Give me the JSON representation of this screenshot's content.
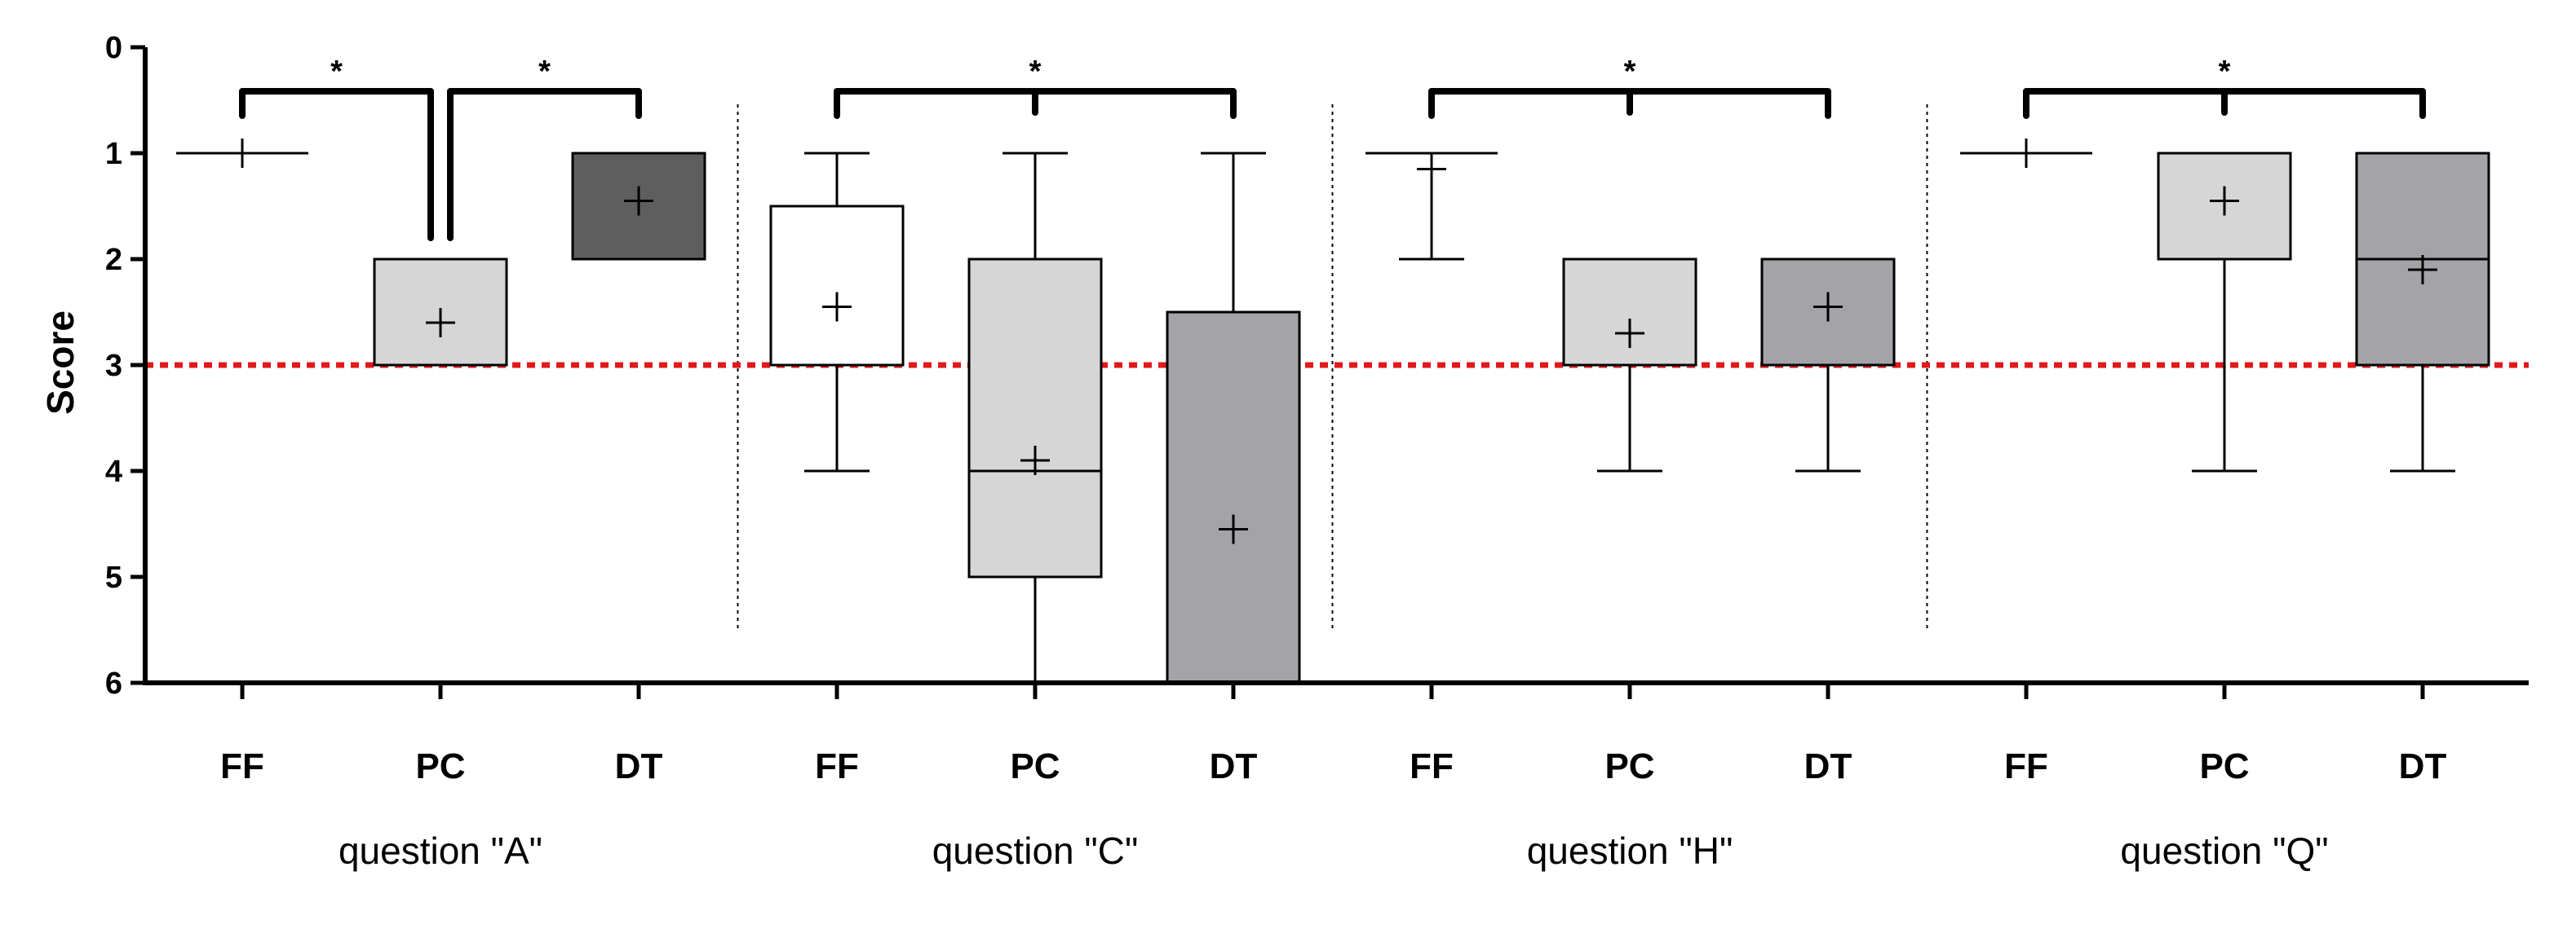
{
  "chart_data": {
    "type": "box",
    "ylabel": "Score",
    "ylim": [
      0,
      6
    ],
    "y_axis_inverted": true,
    "y_ticks": [
      0,
      1,
      2,
      3,
      4,
      5,
      6
    ],
    "reference_line": {
      "value": 3,
      "color": "#e0191b",
      "style": "dotted"
    },
    "groups": [
      {
        "label": "question \"A\"",
        "boxes": [
          {
            "category": "FF",
            "min": 1,
            "q1": 1,
            "median": 1,
            "q3": 1,
            "max": 1,
            "mean": 1,
            "fill": "#ffffff"
          },
          {
            "category": "PC",
            "min": 2,
            "q1": 2,
            "median": 3,
            "q3": 3,
            "max": 3,
            "mean": 2.6,
            "fill": "#d6d6d6"
          },
          {
            "category": "DT",
            "min": 1,
            "q1": 1,
            "median": 2,
            "q3": 2,
            "max": 2,
            "mean": 1.45,
            "fill": "#5e5e5e"
          }
        ],
        "significance": [
          {
            "from": "FF",
            "to": "PC",
            "label": "*"
          },
          {
            "from": "PC",
            "to": "DT",
            "label": "*"
          }
        ]
      },
      {
        "label": "question \"C\"",
        "boxes": [
          {
            "category": "FF",
            "min": 1,
            "q1": 1.5,
            "median": 3,
            "q3": 3,
            "max": 4,
            "mean": 2.45,
            "fill": "#ffffff"
          },
          {
            "category": "PC",
            "min": 1,
            "q1": 2,
            "median": 4,
            "q3": 5,
            "max": 6,
            "mean": 3.9,
            "fill": "#d6d6d6"
          },
          {
            "category": "DT",
            "min": 1,
            "q1": 2.5,
            "median": 6,
            "q3": 6,
            "max": 6,
            "mean": 4.55,
            "fill": "#a4a4a8"
          }
        ],
        "significance": [
          {
            "from": "FF",
            "to": "DT",
            "label": "*"
          }
        ]
      },
      {
        "label": "question \"H\"",
        "boxes": [
          {
            "category": "FF",
            "min": 1,
            "q1": 1,
            "median": 1,
            "q3": 1,
            "max": 2,
            "mean": 1.15,
            "fill": "#ffffff"
          },
          {
            "category": "PC",
            "min": 2,
            "q1": 2,
            "median": 3,
            "q3": 3,
            "max": 4,
            "mean": 2.7,
            "fill": "#d6d6d6"
          },
          {
            "category": "DT",
            "min": 2,
            "q1": 2,
            "median": 3,
            "q3": 3,
            "max": 4,
            "mean": 2.45,
            "fill": "#a4a4a8"
          }
        ],
        "significance": [
          {
            "from": "FF",
            "to": "DT",
            "label": "*"
          }
        ]
      },
      {
        "label": "question \"Q\"",
        "boxes": [
          {
            "category": "FF",
            "min": 1,
            "q1": 1,
            "median": 1,
            "q3": 1,
            "max": 1,
            "mean": 1,
            "fill": "#ffffff"
          },
          {
            "category": "PC",
            "min": 1,
            "q1": 1,
            "median": 2,
            "q3": 2,
            "max": 4,
            "mean": 1.45,
            "fill": "#d6d6d6"
          },
          {
            "category": "DT",
            "min": 1,
            "q1": 1,
            "median": 2,
            "q3": 3,
            "max": 4,
            "mean": 2.1,
            "fill": "#a4a4a8"
          }
        ],
        "significance": [
          {
            "from": "FF",
            "to": "DT",
            "label": "*"
          }
        ]
      }
    ]
  }
}
